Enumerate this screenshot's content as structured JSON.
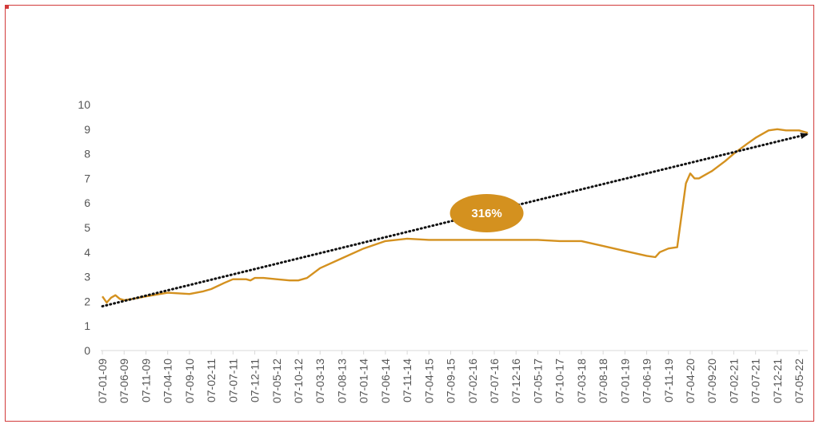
{
  "chart_data": {
    "type": "line",
    "title": "",
    "xlabel": "",
    "ylabel": "",
    "ylim": [
      0,
      10
    ],
    "yticks": [
      0,
      1,
      2,
      3,
      4,
      5,
      6,
      7,
      8,
      9,
      10
    ],
    "grid": false,
    "legend": "none",
    "x_tick_labels": [
      "07-01-09",
      "07-06-09",
      "07-11-09",
      "07-04-10",
      "07-09-10",
      "07-02-11",
      "07-07-11",
      "07-12-11",
      "07-05-12",
      "07-10-12",
      "07-03-13",
      "07-08-13",
      "07-01-14",
      "07-06-14",
      "07-11-14",
      "07-04-15",
      "07-09-15",
      "07-02-16",
      "07-07-16",
      "07-12-16",
      "07-05-17",
      "07-10-17",
      "07-03-18",
      "07-08-18",
      "07-01-19",
      "07-06-19",
      "07-11-19",
      "07-04-20",
      "07-09-20",
      "07-02-21",
      "07-07-21",
      "07-12-21",
      "07-05-22"
    ],
    "series": [
      {
        "color": "#d4911f",
        "x": [
          "07-01-09",
          "07-02-09",
          "07-03-09",
          "07-04-09",
          "07-05-09",
          "07-06-09",
          "07-08-09",
          "07-11-09",
          "07-04-10",
          "07-09-10",
          "07-12-10",
          "07-02-11",
          "07-05-11",
          "07-07-11",
          "07-10-11",
          "07-11-11",
          "07-12-11",
          "07-02-12",
          "07-05-12",
          "07-08-12",
          "07-10-12",
          "07-12-12",
          "07-03-13",
          "07-08-13",
          "07-01-14",
          "07-06-14",
          "07-11-14",
          "07-04-15",
          "07-09-15",
          "07-02-16",
          "07-07-16",
          "07-12-16",
          "07-05-17",
          "07-10-17",
          "07-03-18",
          "07-08-18",
          "07-01-19",
          "07-06-19",
          "07-08-19",
          "07-09-19",
          "07-11-19",
          "07-01-20",
          "07-03-20",
          "07-04-20",
          "07-05-20",
          "07-06-20",
          "07-07-20",
          "07-09-20",
          "07-12-20",
          "07-02-21",
          "07-05-21",
          "07-07-21",
          "07-10-21",
          "07-12-21",
          "07-02-22",
          "07-05-22",
          "07-07-22"
        ],
        "y": [
          2.2,
          1.95,
          2.15,
          2.25,
          2.1,
          2.05,
          2.1,
          2.2,
          2.35,
          2.3,
          2.4,
          2.5,
          2.75,
          2.9,
          2.9,
          2.85,
          2.95,
          2.95,
          2.9,
          2.85,
          2.85,
          2.95,
          3.35,
          3.75,
          4.15,
          4.45,
          4.55,
          4.5,
          4.5,
          4.5,
          4.5,
          4.5,
          4.5,
          4.45,
          4.45,
          4.25,
          4.05,
          3.85,
          3.8,
          4.0,
          4.15,
          4.2,
          6.8,
          7.2,
          7.0,
          7.0,
          7.1,
          7.3,
          7.7,
          8.0,
          8.4,
          8.65,
          8.95,
          9.0,
          8.95,
          8.95,
          8.85
        ]
      }
    ],
    "trendline": {
      "x": [
        "07-01-09",
        "07-07-22"
      ],
      "y": [
        1.8,
        8.8
      ],
      "color": "#111111"
    },
    "annotation": {
      "text": "316%",
      "x": "07-09-15",
      "y": 5.65,
      "fill": "#d4911f"
    }
  }
}
